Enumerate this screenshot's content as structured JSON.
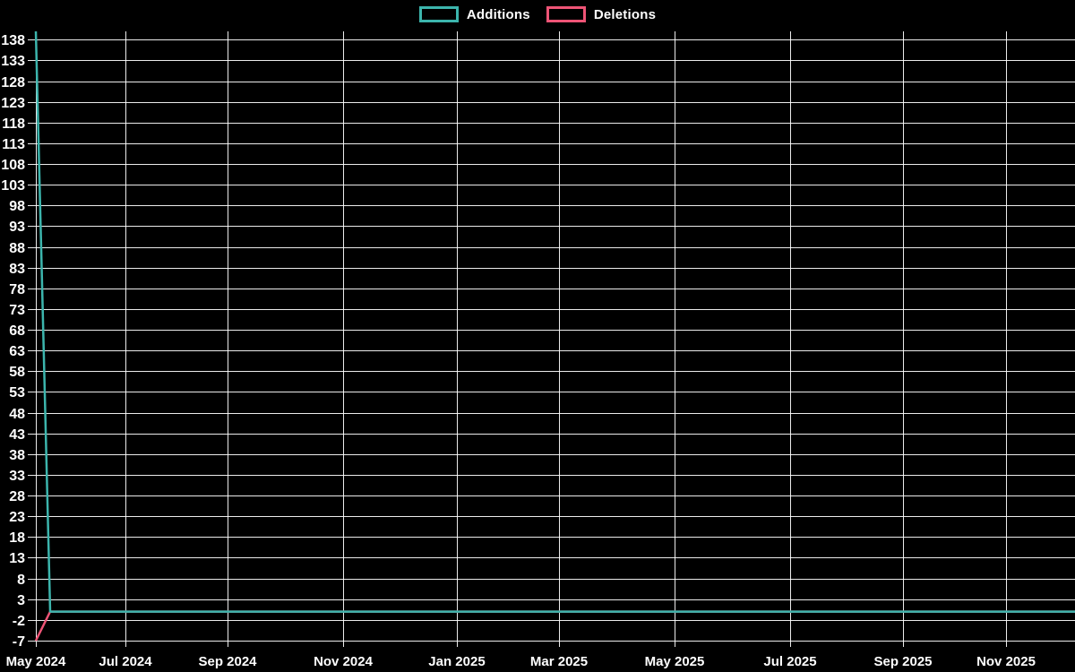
{
  "legend": {
    "items": [
      {
        "label": "Additions",
        "color": "#3cb5ad"
      },
      {
        "label": "Deletions",
        "color": "#ee5476"
      }
    ]
  },
  "chart_data": {
    "type": "line",
    "title": "",
    "background": "#000000",
    "grid": true,
    "gridline_color": "#ffffff",
    "text_color": "#ffffff",
    "x_tick_labels": [
      "May 2024",
      "Jul 2024",
      "Sep 2024",
      "Nov 2024",
      "Jan 2025",
      "Mar 2025",
      "May 2025",
      "Jul 2025",
      "Sep 2025",
      "Nov 2025"
    ],
    "y_tick_labels": [
      138,
      133,
      128,
      123,
      118,
      113,
      108,
      103,
      98,
      93,
      88,
      83,
      78,
      73,
      68,
      63,
      58,
      53,
      48,
      43,
      38,
      33,
      28,
      23,
      18,
      13,
      8,
      3,
      -2,
      -7
    ],
    "ylim": [
      -7,
      140
    ],
    "legend_position": "top-center",
    "series": [
      {
        "name": "Additions",
        "color": "#3cb5ad",
        "note": "spike at first week, zero for all later weeks through Dec 2025",
        "points": [
          {
            "x": "early May 2024",
            "y": 140
          },
          {
            "x": "mid May 2024",
            "y": 0
          },
          {
            "x": "Dec 2025 (end)",
            "y": 0
          }
        ]
      },
      {
        "name": "Deletions",
        "color": "#ee5476",
        "note": "plotted as negative; -7 at first week, zero afterwards through Dec 2025",
        "points": [
          {
            "x": "early May 2024",
            "y": -7
          },
          {
            "x": "mid May 2024",
            "y": 0
          },
          {
            "x": "Dec 2025 (end)",
            "y": 0
          }
        ]
      }
    ]
  }
}
